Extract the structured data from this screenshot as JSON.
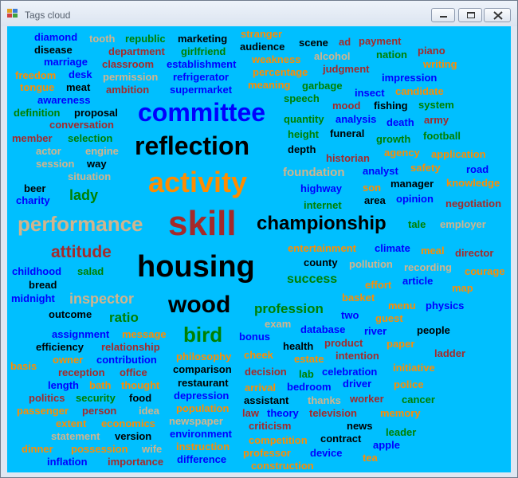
{
  "window": {
    "title": "Tags cloud",
    "background": "#00bfff",
    "controls": [
      "minimize-icon",
      "maximize-icon",
      "close-icon"
    ]
  },
  "palette": {
    "blue": "#0000ff",
    "green": "#008000",
    "black": "#000000",
    "brown": "#a52a2a",
    "orange": "#ff8c00",
    "tan": "#d2b48c"
  },
  "tags": [
    "diamond",
    "tooth",
    "republic",
    "marketing",
    "stranger",
    "disease",
    "department",
    "girlfriend",
    "audience",
    "scene",
    "ad",
    "payment",
    "piano",
    "marriage",
    "classroom",
    "establishment",
    "weakness",
    "alcohol",
    "nation",
    "writing",
    "freedom",
    "desk",
    "permission",
    "refrigerator",
    "percentage",
    "judgment",
    "impression",
    "tongue",
    "meat",
    "ambition",
    "supermarket",
    "meaning",
    "garbage",
    "insect",
    "candidate",
    "awareness",
    "speech",
    "mood",
    "fishing",
    "system",
    "definition",
    "proposal",
    "committee",
    "quantity",
    "analysis",
    "death",
    "army",
    "conversation",
    "height",
    "funeral",
    "growth",
    "football",
    "member",
    "selection",
    "reflection",
    "depth",
    "agency",
    "application",
    "actor",
    "engine",
    "historian",
    "session",
    "way",
    "foundation",
    "analyst",
    "safety",
    "road",
    "situation",
    "activity",
    "son",
    "manager",
    "knowledge",
    "beer",
    "lady",
    "highway",
    "area",
    "opinion",
    "charity",
    "internet",
    "negotiation",
    "performance",
    "skill",
    "championship",
    "tale",
    "employer",
    "entertainment",
    "climate",
    "meal",
    "director",
    "attitude",
    "county",
    "pollution",
    "recording",
    "housing",
    "childhood",
    "salad",
    "success",
    "courage",
    "bread",
    "effort",
    "article",
    "map",
    "inspector",
    "midnight",
    "basket",
    "menu",
    "physics",
    "outcome",
    "wood",
    "profession",
    "two",
    "ratio",
    "guest",
    "exam",
    "assignment",
    "message",
    "bonus",
    "database",
    "river",
    "people",
    "bird",
    "efficiency",
    "relationship",
    "health",
    "product",
    "paper",
    "ladder",
    "basis",
    "owner",
    "philosophy",
    "cheek",
    "intention",
    "contribution",
    "estate",
    "initiative",
    "reception",
    "office",
    "comparison",
    "decision",
    "lab",
    "celebration",
    "length",
    "bath",
    "thought",
    "restaurant",
    "arrival",
    "bedroom",
    "driver",
    "police",
    "politics",
    "security",
    "food",
    "depression",
    "assistant",
    "thanks",
    "worker",
    "cancer",
    "passenger",
    "person",
    "idea",
    "population",
    "law",
    "theory",
    "television",
    "memory",
    "extent",
    "economics",
    "newspaper",
    "criticism",
    "news",
    "statement",
    "version",
    "environment",
    "contract",
    "leader",
    "dinner",
    "possession",
    "wife",
    "instruction",
    "competition",
    "apple",
    "inflation",
    "importance",
    "difference",
    "professor",
    "device",
    "tea",
    "construction"
  ]
}
